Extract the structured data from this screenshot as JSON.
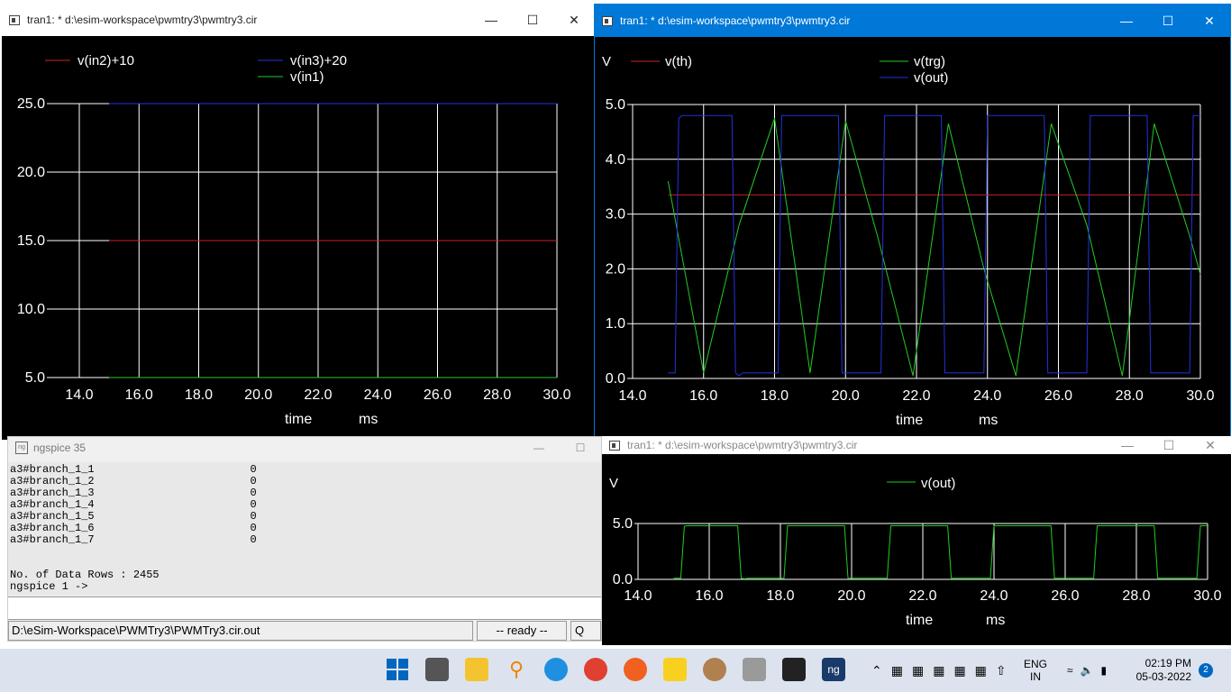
{
  "windows": {
    "w1": {
      "title": "tran1: * d:\\esim-workspace\\pwmtry3\\pwmtry3.cir",
      "legend": [
        "v(in2)+10",
        "v(in3)+20",
        "v(in1)"
      ],
      "xlabel": "time",
      "xunit": "ms",
      "yticks": [
        "25.0",
        "20.0",
        "15.0",
        "10.0",
        "5.0"
      ],
      "xticks": [
        "14.0",
        "16.0",
        "18.0",
        "20.0",
        "22.0",
        "24.0",
        "26.0",
        "28.0",
        "30.0"
      ]
    },
    "w2": {
      "title": "tran1: * d:\\esim-workspace\\pwmtry3\\pwmtry3.cir",
      "ylabel": "V",
      "legend": [
        "v(th)",
        "v(trg)",
        "v(out)"
      ],
      "xlabel": "time",
      "xunit": "ms",
      "yticks": [
        "5.0",
        "4.0",
        "3.0",
        "2.0",
        "1.0",
        "0.0"
      ],
      "xticks": [
        "14.0",
        "16.0",
        "18.0",
        "20.0",
        "22.0",
        "24.0",
        "26.0",
        "28.0",
        "30.0"
      ]
    },
    "w3": {
      "title": "tran1: * d:\\esim-workspace\\pwmtry3\\pwmtry3.cir",
      "ylabel": "V",
      "legend": [
        "v(out)"
      ],
      "xlabel": "time",
      "xunit": "ms",
      "yticks": [
        "5.0",
        "0.0"
      ],
      "xticks": [
        "14.0",
        "16.0",
        "18.0",
        "20.0",
        "22.0",
        "24.0",
        "26.0",
        "28.0",
        "30.0"
      ]
    }
  },
  "chart_data": [
    {
      "type": "line",
      "xlim": [
        14,
        30
      ],
      "ylim": [
        5,
        25
      ],
      "series": [
        {
          "name": "v(in2)+10",
          "color": "#cc2222",
          "x": [
            15,
            30
          ],
          "y": [
            15,
            15
          ]
        },
        {
          "name": "v(in3)+20",
          "color": "#2233dd",
          "x": [
            15,
            30
          ],
          "y": [
            25,
            25
          ]
        },
        {
          "name": "v(in1)",
          "color": "#22cc22",
          "x": [
            15,
            30
          ],
          "y": [
            5,
            5
          ]
        }
      ]
    },
    {
      "type": "line",
      "xlim": [
        14,
        30
      ],
      "ylim": [
        0,
        5
      ],
      "series": [
        {
          "name": "v(th)",
          "color": "#cc2222",
          "x": [
            15,
            30
          ],
          "y": [
            3.35,
            3.35
          ]
        },
        {
          "name": "v(trg)",
          "color": "#22cc22",
          "x": [
            15.0,
            16.0,
            17.0,
            18.0,
            19.0,
            20.0,
            20.9,
            21.9,
            22.9,
            23.9,
            24.8,
            25.8,
            26.8,
            27.8,
            28.7,
            29.7,
            30.0
          ],
          "y": [
            3.6,
            0.1,
            2.8,
            4.75,
            0.1,
            4.7,
            2.6,
            0.05,
            4.65,
            2.0,
            0.05,
            4.65,
            2.8,
            0.05,
            4.65,
            2.6,
            1.9
          ]
        },
        {
          "name": "v(out)",
          "color": "#2233dd",
          "x": [
            15.0,
            15.2,
            15.3,
            15.4,
            16.8,
            16.9,
            17.0,
            17.1,
            18.1,
            18.2,
            19.8,
            19.9,
            20.0,
            21.0,
            21.1,
            22.7,
            22.8,
            22.9,
            23.9,
            24.0,
            25.6,
            25.7,
            25.8,
            26.8,
            26.9,
            28.5,
            28.6,
            28.7,
            29.7,
            29.8,
            30.0
          ],
          "y": [
            0.1,
            0.1,
            4.75,
            4.8,
            4.8,
            0.1,
            0.05,
            0.1,
            0.1,
            4.8,
            4.8,
            0.1,
            0.1,
            0.1,
            4.8,
            4.8,
            0.1,
            0.1,
            0.1,
            4.8,
            4.8,
            0.1,
            0.1,
            0.1,
            4.8,
            4.8,
            0.1,
            0.1,
            0.1,
            4.8,
            4.8
          ]
        }
      ]
    },
    {
      "type": "line",
      "xlim": [
        14,
        30
      ],
      "ylim": [
        0,
        5
      ],
      "series": [
        {
          "name": "v(out)",
          "color": "#22cc22",
          "x": [
            15.0,
            15.2,
            15.3,
            15.4,
            16.8,
            16.9,
            17.0,
            17.1,
            18.1,
            18.2,
            19.8,
            19.9,
            20.0,
            21.0,
            21.1,
            22.7,
            22.8,
            22.9,
            23.9,
            24.0,
            25.6,
            25.7,
            25.8,
            26.8,
            26.9,
            28.5,
            28.6,
            28.7,
            29.7,
            29.8,
            30.0
          ],
          "y": [
            0.1,
            0.1,
            4.75,
            4.8,
            4.8,
            0.1,
            0.05,
            0.1,
            0.1,
            4.8,
            4.8,
            0.1,
            0.1,
            0.1,
            4.8,
            4.8,
            0.1,
            0.1,
            0.1,
            4.8,
            4.8,
            0.1,
            0.1,
            0.1,
            4.8,
            4.8,
            0.1,
            0.1,
            0.1,
            4.8,
            4.8
          ]
        }
      ]
    }
  ],
  "console": {
    "title": "ngspice 35",
    "lines": [
      "a3#branch_1_1                        0",
      "a3#branch_1_2                        0",
      "a3#branch_1_3                        0",
      "a3#branch_1_4                        0",
      "a3#branch_1_5                        0",
      "a3#branch_1_6                        0",
      "a3#branch_1_7                        0",
      "",
      "",
      "No. of Data Rows : 2455",
      "ngspice 1 ->"
    ],
    "status_path": "D:\\eSim-Workspace\\PWMTry3\\PWMTry3.cir.out",
    "status_state": "-- ready --",
    "status_extra": "Q"
  },
  "taskbar": {
    "lang_top": "ENG",
    "lang_bottom": "IN",
    "time": "02:19 PM",
    "date": "05-03-2022",
    "notif_count": "2"
  },
  "colors": {
    "active_title": "#0078d7",
    "inactive_title": "#ffffff"
  }
}
